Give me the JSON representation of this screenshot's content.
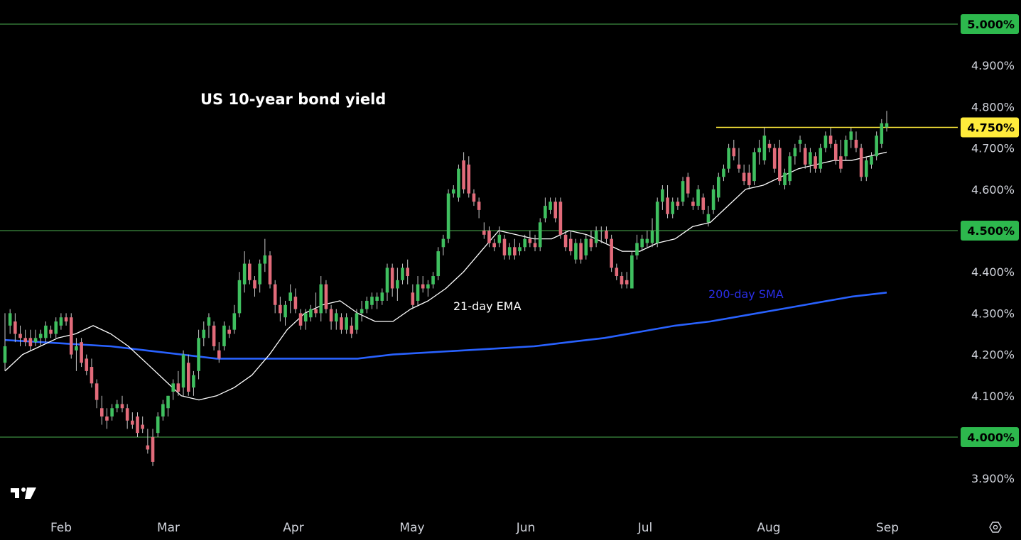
{
  "chart_data": {
    "type": "candlestick",
    "title": "US 10-year bond yield",
    "y_unit": "%",
    "ylim": [
      3.83,
      5.05
    ],
    "y_ticks": [
      "5.000%",
      "4.900%",
      "4.800%",
      "4.750%",
      "4.700%",
      "4.600%",
      "4.500%",
      "4.400%",
      "4.300%",
      "4.200%",
      "4.100%",
      "4.000%",
      "3.900%"
    ],
    "x_ticks": [
      "Feb",
      "Mar",
      "Apr",
      "May",
      "Jun",
      "Jul",
      "Aug",
      "Sep"
    ],
    "grid": false,
    "horizontal_levels": [
      {
        "value": 5.0,
        "label": "5.000%",
        "color": "#4caf50",
        "full_width": true
      },
      {
        "value": 4.75,
        "label": "4.750%",
        "color": "#ffeb3b",
        "full_width": false
      },
      {
        "value": 4.5,
        "label": "4.500%",
        "color": "#4caf50",
        "full_width": true
      },
      {
        "value": 4.0,
        "label": "4.000%",
        "color": "#4caf50",
        "full_width": true
      }
    ],
    "annotations": [
      {
        "text": "21-day EMA",
        "color": "#ffffff"
      },
      {
        "text": "200-day SMA",
        "color": "#2a2ee8"
      }
    ],
    "series": [
      {
        "name": "21-day EMA",
        "color": "#ffffff",
        "values": [
          4.16,
          4.2,
          4.22,
          4.24,
          4.25,
          4.27,
          4.25,
          4.22,
          4.18,
          4.14,
          4.1,
          4.09,
          4.1,
          4.12,
          4.15,
          4.2,
          4.26,
          4.3,
          4.32,
          4.33,
          4.3,
          4.28,
          4.28,
          4.31,
          4.33,
          4.36,
          4.4,
          4.45,
          4.5,
          4.49,
          4.48,
          4.48,
          4.5,
          4.49,
          4.47,
          4.45,
          4.45,
          4.47,
          4.48,
          4.51,
          4.52,
          4.56,
          4.6,
          4.61,
          4.63,
          4.65,
          4.66,
          4.67,
          4.67,
          4.68,
          4.69
        ]
      },
      {
        "name": "200-day SMA",
        "color": "#2962ff",
        "values": [
          4.235,
          4.23,
          4.225,
          4.22,
          4.21,
          4.2,
          4.19,
          4.19,
          4.19,
          4.19,
          4.19,
          4.2,
          4.205,
          4.21,
          4.215,
          4.22,
          4.23,
          4.24,
          4.255,
          4.27,
          4.28,
          4.295,
          4.31,
          4.325,
          4.34,
          4.35
        ]
      }
    ],
    "candles": [
      {
        "o": 4.18,
        "h": 4.3,
        "l": 4.16,
        "c": 4.22
      },
      {
        "o": 4.27,
        "h": 4.31,
        "l": 4.25,
        "c": 4.3
      },
      {
        "o": 4.28,
        "h": 4.3,
        "l": 4.23,
        "c": 4.25
      },
      {
        "o": 4.25,
        "h": 4.27,
        "l": 4.22,
        "c": 4.24
      },
      {
        "o": 4.24,
        "h": 4.26,
        "l": 4.22,
        "c": 4.23
      },
      {
        "o": 4.24,
        "h": 4.26,
        "l": 4.21,
        "c": 4.22
      },
      {
        "o": 4.23,
        "h": 4.26,
        "l": 4.22,
        "c": 4.24
      },
      {
        "o": 4.24,
        "h": 4.26,
        "l": 4.22,
        "c": 4.25
      },
      {
        "o": 4.24,
        "h": 4.28,
        "l": 4.23,
        "c": 4.27
      },
      {
        "o": 4.26,
        "h": 4.27,
        "l": 4.24,
        "c": 4.25
      },
      {
        "o": 4.25,
        "h": 4.29,
        "l": 4.24,
        "c": 4.28
      },
      {
        "o": 4.27,
        "h": 4.3,
        "l": 4.26,
        "c": 4.29
      },
      {
        "o": 4.29,
        "h": 4.3,
        "l": 4.27,
        "c": 4.28
      },
      {
        "o": 4.29,
        "h": 4.3,
        "l": 4.19,
        "c": 4.2
      },
      {
        "o": 4.21,
        "h": 4.24,
        "l": 4.16,
        "c": 4.22
      },
      {
        "o": 4.23,
        "h": 4.24,
        "l": 4.17,
        "c": 4.18
      },
      {
        "o": 4.19,
        "h": 4.2,
        "l": 4.15,
        "c": 4.16
      },
      {
        "o": 4.17,
        "h": 4.19,
        "l": 4.12,
        "c": 4.13
      },
      {
        "o": 4.13,
        "h": 4.14,
        "l": 4.07,
        "c": 4.09
      },
      {
        "o": 4.07,
        "h": 4.1,
        "l": 4.03,
        "c": 4.05
      },
      {
        "o": 4.05,
        "h": 4.07,
        "l": 4.02,
        "c": 4.04
      },
      {
        "o": 4.05,
        "h": 4.08,
        "l": 4.04,
        "c": 4.07
      },
      {
        "o": 4.07,
        "h": 4.09,
        "l": 4.06,
        "c": 4.08
      },
      {
        "o": 4.08,
        "h": 4.1,
        "l": 4.06,
        "c": 4.07
      },
      {
        "o": 4.07,
        "h": 4.08,
        "l": 4.02,
        "c": 4.04
      },
      {
        "o": 4.04,
        "h": 4.06,
        "l": 4.02,
        "c": 4.03
      },
      {
        "o": 4.05,
        "h": 4.06,
        "l": 4.0,
        "c": 4.01
      },
      {
        "o": 4.03,
        "h": 4.05,
        "l": 4.01,
        "c": 4.02
      },
      {
        "o": 3.98,
        "h": 4.02,
        "l": 3.96,
        "c": 3.97
      },
      {
        "o": 4.0,
        "h": 4.02,
        "l": 3.93,
        "c": 3.94
      },
      {
        "o": 4.01,
        "h": 4.06,
        "l": 4.0,
        "c": 4.05
      },
      {
        "o": 4.05,
        "h": 4.09,
        "l": 4.04,
        "c": 4.08
      },
      {
        "o": 4.07,
        "h": 4.1,
        "l": 4.05,
        "c": 4.1
      },
      {
        "o": 4.11,
        "h": 4.14,
        "l": 4.09,
        "c": 4.13
      },
      {
        "o": 4.13,
        "h": 4.16,
        "l": 4.1,
        "c": 4.11
      },
      {
        "o": 4.12,
        "h": 4.21,
        "l": 4.1,
        "c": 4.2
      },
      {
        "o": 4.18,
        "h": 4.2,
        "l": 4.1,
        "c": 4.11
      },
      {
        "o": 4.12,
        "h": 4.16,
        "l": 4.1,
        "c": 4.15
      },
      {
        "o": 4.16,
        "h": 4.26,
        "l": 4.14,
        "c": 4.24
      },
      {
        "o": 4.24,
        "h": 4.28,
        "l": 4.22,
        "c": 4.26
      },
      {
        "o": 4.27,
        "h": 4.3,
        "l": 4.24,
        "c": 4.29
      },
      {
        "o": 4.27,
        "h": 4.28,
        "l": 4.21,
        "c": 4.22
      },
      {
        "o": 4.21,
        "h": 4.23,
        "l": 4.18,
        "c": 4.19
      },
      {
        "o": 4.22,
        "h": 4.28,
        "l": 4.21,
        "c": 4.27
      },
      {
        "o": 4.26,
        "h": 4.27,
        "l": 4.24,
        "c": 4.25
      },
      {
        "o": 4.26,
        "h": 4.32,
        "l": 4.25,
        "c": 4.3
      },
      {
        "o": 4.3,
        "h": 4.4,
        "l": 4.29,
        "c": 4.38
      },
      {
        "o": 4.37,
        "h": 4.45,
        "l": 4.35,
        "c": 4.42
      },
      {
        "o": 4.42,
        "h": 4.43,
        "l": 4.37,
        "c": 4.38
      },
      {
        "o": 4.38,
        "h": 4.39,
        "l": 4.34,
        "c": 4.36
      },
      {
        "o": 4.37,
        "h": 4.43,
        "l": 4.35,
        "c": 4.42
      },
      {
        "o": 4.42,
        "h": 4.48,
        "l": 4.4,
        "c": 4.44
      },
      {
        "o": 4.44,
        "h": 4.45,
        "l": 4.36,
        "c": 4.37
      },
      {
        "o": 4.37,
        "h": 4.38,
        "l": 4.3,
        "c": 4.32
      },
      {
        "o": 4.32,
        "h": 4.34,
        "l": 4.28,
        "c": 4.3
      },
      {
        "o": 4.29,
        "h": 4.33,
        "l": 4.27,
        "c": 4.32
      },
      {
        "o": 4.33,
        "h": 4.37,
        "l": 4.3,
        "c": 4.35
      },
      {
        "o": 4.34,
        "h": 4.36,
        "l": 4.3,
        "c": 4.31
      },
      {
        "o": 4.3,
        "h": 4.31,
        "l": 4.26,
        "c": 4.27
      },
      {
        "o": 4.28,
        "h": 4.31,
        "l": 4.26,
        "c": 4.3
      },
      {
        "o": 4.29,
        "h": 4.32,
        "l": 4.28,
        "c": 4.31
      },
      {
        "o": 4.31,
        "h": 4.35,
        "l": 4.29,
        "c": 4.3
      },
      {
        "o": 4.3,
        "h": 4.39,
        "l": 4.28,
        "c": 4.37
      },
      {
        "o": 4.37,
        "h": 4.38,
        "l": 4.3,
        "c": 4.31
      },
      {
        "o": 4.31,
        "h": 4.32,
        "l": 4.26,
        "c": 4.28
      },
      {
        "o": 4.28,
        "h": 4.31,
        "l": 4.26,
        "c": 4.3
      },
      {
        "o": 4.29,
        "h": 4.3,
        "l": 4.25,
        "c": 4.26
      },
      {
        "o": 4.26,
        "h": 4.3,
        "l": 4.25,
        "c": 4.29
      },
      {
        "o": 4.27,
        "h": 4.29,
        "l": 4.24,
        "c": 4.25
      },
      {
        "o": 4.26,
        "h": 4.31,
        "l": 4.25,
        "c": 4.3
      },
      {
        "o": 4.3,
        "h": 4.33,
        "l": 4.28,
        "c": 4.31
      },
      {
        "o": 4.31,
        "h": 4.34,
        "l": 4.3,
        "c": 4.33
      },
      {
        "o": 4.32,
        "h": 4.35,
        "l": 4.31,
        "c": 4.34
      },
      {
        "o": 4.33,
        "h": 4.35,
        "l": 4.31,
        "c": 4.34
      },
      {
        "o": 4.33,
        "h": 4.36,
        "l": 4.32,
        "c": 4.35
      },
      {
        "o": 4.35,
        "h": 4.42,
        "l": 4.33,
        "c": 4.41
      },
      {
        "o": 4.41,
        "h": 4.42,
        "l": 4.34,
        "c": 4.36
      },
      {
        "o": 4.36,
        "h": 4.41,
        "l": 4.33,
        "c": 4.38
      },
      {
        "o": 4.38,
        "h": 4.42,
        "l": 4.37,
        "c": 4.41
      },
      {
        "o": 4.41,
        "h": 4.43,
        "l": 4.37,
        "c": 4.39
      },
      {
        "o": 4.35,
        "h": 4.37,
        "l": 4.31,
        "c": 4.32
      },
      {
        "o": 4.33,
        "h": 4.39,
        "l": 4.32,
        "c": 4.37
      },
      {
        "o": 4.37,
        "h": 4.39,
        "l": 4.35,
        "c": 4.36
      },
      {
        "o": 4.36,
        "h": 4.38,
        "l": 4.34,
        "c": 4.37
      },
      {
        "o": 4.37,
        "h": 4.4,
        "l": 4.36,
        "c": 4.39
      },
      {
        "o": 4.39,
        "h": 4.46,
        "l": 4.38,
        "c": 4.45
      },
      {
        "o": 4.46,
        "h": 4.49,
        "l": 4.44,
        "c": 4.48
      },
      {
        "o": 4.48,
        "h": 4.6,
        "l": 4.47,
        "c": 4.59
      },
      {
        "o": 4.59,
        "h": 4.61,
        "l": 4.58,
        "c": 4.6
      },
      {
        "o": 4.58,
        "h": 4.66,
        "l": 4.57,
        "c": 4.65
      },
      {
        "o": 4.67,
        "h": 4.69,
        "l": 4.59,
        "c": 4.6
      },
      {
        "o": 4.66,
        "h": 4.68,
        "l": 4.58,
        "c": 4.59
      },
      {
        "o": 4.59,
        "h": 4.6,
        "l": 4.56,
        "c": 4.57
      },
      {
        "o": 4.57,
        "h": 4.58,
        "l": 4.53,
        "c": 4.55
      },
      {
        "o": 4.5,
        "h": 4.52,
        "l": 4.48,
        "c": 4.49
      },
      {
        "o": 4.5,
        "h": 4.51,
        "l": 4.46,
        "c": 4.47
      },
      {
        "o": 4.47,
        "h": 4.48,
        "l": 4.45,
        "c": 4.46
      },
      {
        "o": 4.47,
        "h": 4.51,
        "l": 4.46,
        "c": 4.49
      },
      {
        "o": 4.48,
        "h": 4.49,
        "l": 4.43,
        "c": 4.44
      },
      {
        "o": 4.44,
        "h": 4.47,
        "l": 4.43,
        "c": 4.46
      },
      {
        "o": 4.46,
        "h": 4.48,
        "l": 4.43,
        "c": 4.44
      },
      {
        "o": 4.45,
        "h": 4.47,
        "l": 4.44,
        "c": 4.46
      },
      {
        "o": 4.46,
        "h": 4.49,
        "l": 4.45,
        "c": 4.48
      },
      {
        "o": 4.48,
        "h": 4.5,
        "l": 4.46,
        "c": 4.47
      },
      {
        "o": 4.47,
        "h": 4.49,
        "l": 4.45,
        "c": 4.46
      },
      {
        "o": 4.46,
        "h": 4.53,
        "l": 4.45,
        "c": 4.52
      },
      {
        "o": 4.53,
        "h": 4.58,
        "l": 4.52,
        "c": 4.56
      },
      {
        "o": 4.55,
        "h": 4.58,
        "l": 4.54,
        "c": 4.57
      },
      {
        "o": 4.57,
        "h": 4.58,
        "l": 4.52,
        "c": 4.53
      },
      {
        "o": 4.57,
        "h": 4.58,
        "l": 4.48,
        "c": 4.49
      },
      {
        "o": 4.49,
        "h": 4.5,
        "l": 4.45,
        "c": 4.46
      },
      {
        "o": 4.48,
        "h": 4.5,
        "l": 4.44,
        "c": 4.45
      },
      {
        "o": 4.43,
        "h": 4.48,
        "l": 4.42,
        "c": 4.47
      },
      {
        "o": 4.47,
        "h": 4.48,
        "l": 4.42,
        "c": 4.43
      },
      {
        "o": 4.44,
        "h": 4.49,
        "l": 4.43,
        "c": 4.48
      },
      {
        "o": 4.48,
        "h": 4.5,
        "l": 4.45,
        "c": 4.46
      },
      {
        "o": 4.47,
        "h": 4.51,
        "l": 4.46,
        "c": 4.5
      },
      {
        "o": 4.5,
        "h": 4.51,
        "l": 4.47,
        "c": 4.5
      },
      {
        "o": 4.5,
        "h": 4.51,
        "l": 4.47,
        "c": 4.48
      },
      {
        "o": 4.48,
        "h": 4.49,
        "l": 4.4,
        "c": 4.41
      },
      {
        "o": 4.41,
        "h": 4.42,
        "l": 4.38,
        "c": 4.39
      },
      {
        "o": 4.39,
        "h": 4.4,
        "l": 4.36,
        "c": 4.37
      },
      {
        "o": 4.38,
        "h": 4.4,
        "l": 4.36,
        "c": 4.37
      },
      {
        "o": 4.36,
        "h": 4.45,
        "l": 4.36,
        "c": 4.44
      },
      {
        "o": 4.44,
        "h": 4.49,
        "l": 4.43,
        "c": 4.47
      },
      {
        "o": 4.46,
        "h": 4.49,
        "l": 4.45,
        "c": 4.48
      },
      {
        "o": 4.47,
        "h": 4.5,
        "l": 4.46,
        "c": 4.48
      },
      {
        "o": 4.47,
        "h": 4.53,
        "l": 4.46,
        "c": 4.5
      },
      {
        "o": 4.47,
        "h": 4.58,
        "l": 4.46,
        "c": 4.57
      },
      {
        "o": 4.57,
        "h": 4.61,
        "l": 4.55,
        "c": 4.6
      },
      {
        "o": 4.58,
        "h": 4.61,
        "l": 4.53,
        "c": 4.54
      },
      {
        "o": 4.54,
        "h": 4.58,
        "l": 4.53,
        "c": 4.57
      },
      {
        "o": 4.57,
        "h": 4.58,
        "l": 4.55,
        "c": 4.56
      },
      {
        "o": 4.57,
        "h": 4.63,
        "l": 4.56,
        "c": 4.62
      },
      {
        "o": 4.63,
        "h": 4.64,
        "l": 4.58,
        "c": 4.59
      },
      {
        "o": 4.57,
        "h": 4.58,
        "l": 4.55,
        "c": 4.56
      },
      {
        "o": 4.56,
        "h": 4.61,
        "l": 4.55,
        "c": 4.6
      },
      {
        "o": 4.58,
        "h": 4.59,
        "l": 4.54,
        "c": 4.55
      },
      {
        "o": 4.52,
        "h": 4.56,
        "l": 4.51,
        "c": 4.54
      },
      {
        "o": 4.55,
        "h": 4.61,
        "l": 4.54,
        "c": 4.6
      },
      {
        "o": 4.58,
        "h": 4.64,
        "l": 4.57,
        "c": 4.63
      },
      {
        "o": 4.63,
        "h": 4.66,
        "l": 4.62,
        "c": 4.65
      },
      {
        "o": 4.65,
        "h": 4.71,
        "l": 4.64,
        "c": 4.7
      },
      {
        "o": 4.7,
        "h": 4.72,
        "l": 4.67,
        "c": 4.68
      },
      {
        "o": 4.66,
        "h": 4.7,
        "l": 4.64,
        "c": 4.65
      },
      {
        "o": 4.64,
        "h": 4.66,
        "l": 4.61,
        "c": 4.62
      },
      {
        "o": 4.64,
        "h": 4.66,
        "l": 4.6,
        "c": 4.61
      },
      {
        "o": 4.62,
        "h": 4.7,
        "l": 4.61,
        "c": 4.69
      },
      {
        "o": 4.69,
        "h": 4.72,
        "l": 4.66,
        "c": 4.7
      },
      {
        "o": 4.67,
        "h": 4.75,
        "l": 4.66,
        "c": 4.73
      },
      {
        "o": 4.71,
        "h": 4.72,
        "l": 4.69,
        "c": 4.7
      },
      {
        "o": 4.7,
        "h": 4.71,
        "l": 4.64,
        "c": 4.65
      },
      {
        "o": 4.7,
        "h": 4.72,
        "l": 4.61,
        "c": 4.62
      },
      {
        "o": 4.61,
        "h": 4.65,
        "l": 4.6,
        "c": 4.64
      },
      {
        "o": 4.62,
        "h": 4.69,
        "l": 4.61,
        "c": 4.68
      },
      {
        "o": 4.68,
        "h": 4.71,
        "l": 4.66,
        "c": 4.7
      },
      {
        "o": 4.71,
        "h": 4.73,
        "l": 4.69,
        "c": 4.72
      },
      {
        "o": 4.7,
        "h": 4.71,
        "l": 4.65,
        "c": 4.66
      },
      {
        "o": 4.66,
        "h": 4.7,
        "l": 4.64,
        "c": 4.69
      },
      {
        "o": 4.68,
        "h": 4.69,
        "l": 4.64,
        "c": 4.65
      },
      {
        "o": 4.65,
        "h": 4.71,
        "l": 4.64,
        "c": 4.7
      },
      {
        "o": 4.7,
        "h": 4.74,
        "l": 4.69,
        "c": 4.73
      },
      {
        "o": 4.73,
        "h": 4.75,
        "l": 4.7,
        "c": 4.71
      },
      {
        "o": 4.71,
        "h": 4.72,
        "l": 4.66,
        "c": 4.67
      },
      {
        "o": 4.68,
        "h": 4.72,
        "l": 4.64,
        "c": 4.65
      },
      {
        "o": 4.68,
        "h": 4.73,
        "l": 4.67,
        "c": 4.72
      },
      {
        "o": 4.72,
        "h": 4.75,
        "l": 4.7,
        "c": 4.74
      },
      {
        "o": 4.72,
        "h": 4.74,
        "l": 4.69,
        "c": 4.7
      },
      {
        "o": 4.7,
        "h": 4.71,
        "l": 4.62,
        "c": 4.63
      },
      {
        "o": 4.63,
        "h": 4.68,
        "l": 4.62,
        "c": 4.67
      },
      {
        "o": 4.66,
        "h": 4.69,
        "l": 4.65,
        "c": 4.68
      },
      {
        "o": 4.68,
        "h": 4.74,
        "l": 4.67,
        "c": 4.73
      },
      {
        "o": 4.71,
        "h": 4.77,
        "l": 4.7,
        "c": 4.76
      },
      {
        "o": 4.75,
        "h": 4.79,
        "l": 4.74,
        "c": 4.76
      }
    ]
  },
  "badges": [
    {
      "label": "5.000%",
      "bg": "#2db84d",
      "fg": "#000000"
    },
    {
      "label": "4.750%",
      "bg": "#ffeb3b",
      "fg": "#000000"
    },
    {
      "label": "4.500%",
      "bg": "#2db84d",
      "fg": "#000000"
    },
    {
      "label": "4.000%",
      "bg": "#2db84d",
      "fg": "#000000"
    }
  ],
  "colors": {
    "up": "#26a69a",
    "up_fill": "#3fbf5f",
    "down": "#ef5350",
    "down_fill": "#e26b7a",
    "background": "#000000"
  },
  "icons": {
    "brand_logo": "tradingview-logo",
    "settings": "settings-icon"
  }
}
